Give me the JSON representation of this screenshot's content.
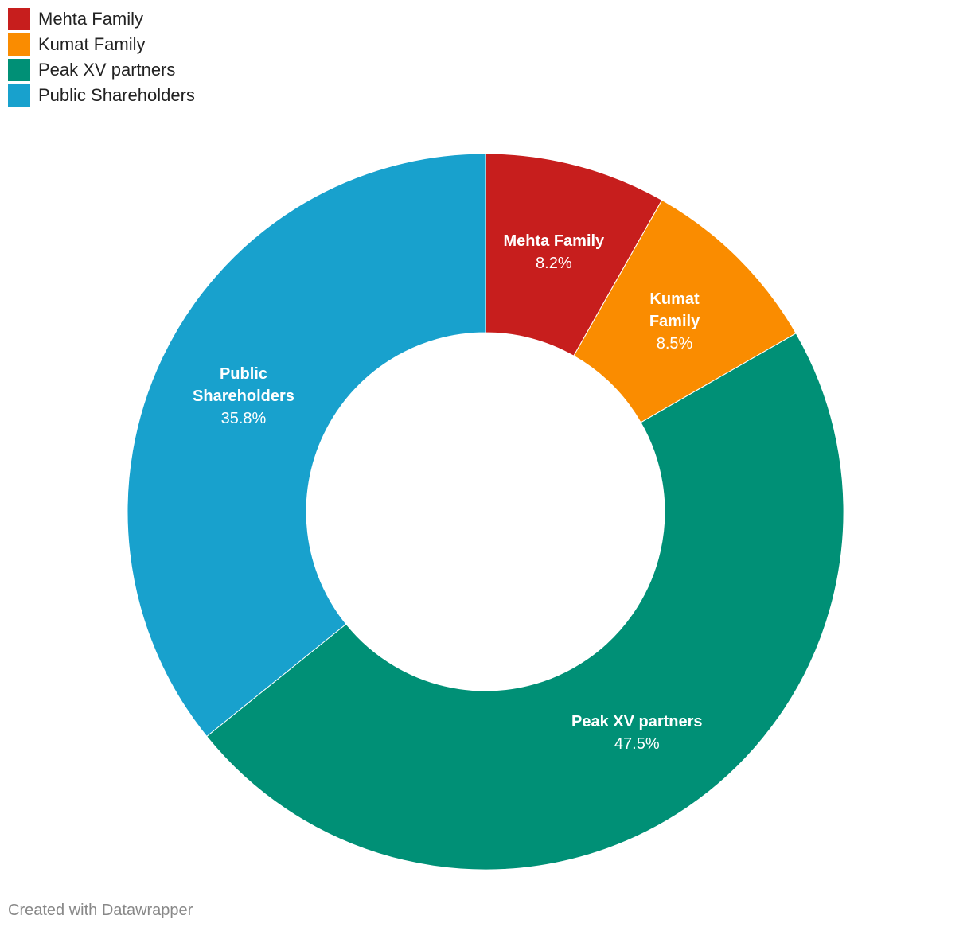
{
  "chart_data": {
    "type": "donut",
    "categories": [
      "Mehta Family",
      "Kumat Family",
      "Peak XV partners",
      "Public Shareholders"
    ],
    "values": [
      8.2,
      8.5,
      47.5,
      35.8
    ],
    "value_labels": [
      "8.2%",
      "8.5%",
      "47.5%",
      "35.8%"
    ],
    "colors": [
      "#c71e1d",
      "#fa8c00",
      "#009076",
      "#18a1cd"
    ],
    "legend": "top-left",
    "footer": "Created with Datawrapper"
  }
}
